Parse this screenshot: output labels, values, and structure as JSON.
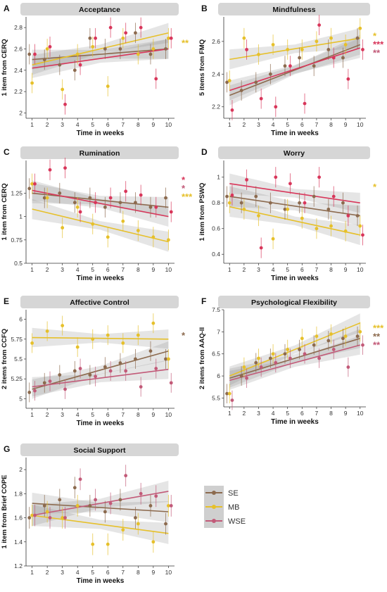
{
  "legend": {
    "entries": [
      {
        "name": "SE",
        "color": "#8C6A4E"
      },
      {
        "name": "MB",
        "color": "#E6C02A"
      },
      {
        "name": "WSE",
        "color": "#C25A78"
      }
    ]
  },
  "chart_data": [
    {
      "type": "scatter",
      "panel_letter": "A",
      "title": "Acceptance",
      "xlabel": "Time in weeks",
      "ylabel": "1 item from CERQ",
      "x": [
        1,
        2,
        3,
        4,
        5,
        6,
        7,
        8,
        9,
        10
      ],
      "xlim": [
        0.6,
        10.4
      ],
      "ylim": [
        1.95,
        2.9
      ],
      "yticks": [
        2.0,
        2.2,
        2.4,
        2.6,
        2.8
      ],
      "series": [
        {
          "values": [
            2.55,
            2.5,
            2.45,
            2.4,
            2.7,
            2.6,
            2.6,
            2.75,
            2.55,
            2.6
          ],
          "trend": [
            2.5,
            2.6
          ],
          "color": "#8C6A4E"
        },
        {
          "values": [
            2.28,
            2.6,
            2.22,
            2.55,
            2.62,
            2.25,
            2.7,
            2.55,
            2.6,
            2.7
          ],
          "trend": [
            2.45,
            2.75
          ],
          "color": "#E6C02A"
        },
        {
          "values": [
            2.55,
            2.62,
            2.08,
            2.45,
            2.7,
            2.8,
            2.75,
            2.8,
            2.32,
            2.7
          ],
          "trend": [
            2.42,
            2.6
          ],
          "color": "#D8365A"
        }
      ],
      "significance": [
        {
          "stars": "**",
          "color": "#E6C02A"
        }
      ]
    },
    {
      "type": "scatter",
      "panel_letter": "B",
      "title": "Mindfulness",
      "xlabel": "Time in weeks",
      "ylabel": "5 items from FMQ",
      "x": [
        1,
        2,
        3,
        4,
        5,
        6,
        7,
        8,
        9,
        10
      ],
      "xlim": [
        0.6,
        10.4
      ],
      "ylim": [
        2.13,
        2.75
      ],
      "yticks": [
        2.2,
        2.4,
        2.6
      ],
      "series": [
        {
          "values": [
            2.35,
            2.3,
            2.35,
            2.4,
            2.45,
            2.5,
            2.45,
            2.55,
            2.5,
            2.62
          ],
          "trend": [
            2.27,
            2.58
          ],
          "color": "#8C6A4E"
        },
        {
          "values": [
            2.36,
            2.62,
            2.52,
            2.58,
            2.55,
            2.55,
            2.6,
            2.62,
            2.58,
            2.68
          ],
          "trend": [
            2.49,
            2.62
          ],
          "color": "#E6C02A"
        },
        {
          "values": [
            2.18,
            2.55,
            2.25,
            2.2,
            2.45,
            2.22,
            2.7,
            2.5,
            2.37,
            2.55
          ],
          "trend": [
            2.3,
            2.56
          ],
          "color": "#D8365A"
        }
      ],
      "significance": [
        {
          "stars": "*",
          "color": "#E6C02A"
        },
        {
          "stars": "***",
          "color": "#D8365A"
        },
        {
          "stars": "**",
          "color": "#C25A78"
        }
      ]
    },
    {
      "type": "scatter",
      "panel_letter": "C",
      "title": "Rumination",
      "xlabel": "Time in weeks",
      "ylabel": "1 item from CERQ",
      "x": [
        1,
        2,
        3,
        4,
        5,
        6,
        7,
        8,
        9,
        10
      ],
      "xlim": [
        0.6,
        10.4
      ],
      "ylim": [
        0.5,
        1.6
      ],
      "yticks": [
        0.5,
        0.75,
        1.0,
        1.25
      ],
      "series": [
        {
          "values": [
            1.3,
            1.2,
            1.25,
            1.15,
            1.2,
            1.1,
            1.15,
            1.15,
            1.1,
            1.2
          ],
          "trend": [
            1.25,
            1.1
          ],
          "color": "#8C6A4E"
        },
        {
          "values": [
            1.35,
            1.2,
            0.88,
            1.1,
            0.92,
            0.78,
            0.95,
            0.85,
            0.78,
            0.75
          ],
          "trend": [
            1.08,
            0.73
          ],
          "color": "#E6C02A"
        },
        {
          "values": [
            1.35,
            1.5,
            1.52,
            1.05,
            1.15,
            1.2,
            1.27,
            1.23,
            1.1,
            1.05
          ],
          "trend": [
            1.28,
            1.0
          ],
          "color": "#D8365A"
        }
      ],
      "significance": [
        {
          "stars": "*",
          "color": "#D8365A"
        },
        {
          "stars": "*",
          "color": "#C25A78"
        },
        {
          "stars": "***",
          "color": "#E6C02A"
        }
      ]
    },
    {
      "type": "scatter",
      "panel_letter": "D",
      "title": "Worry",
      "xlabel": "Time in weeks",
      "ylabel": "1 item from PSWQ",
      "x": [
        1,
        2,
        3,
        4,
        5,
        6,
        7,
        8,
        9,
        10
      ],
      "xlim": [
        0.6,
        10.4
      ],
      "ylim": [
        0.33,
        1.13
      ],
      "yticks": [
        0.4,
        0.6,
        0.8,
        1.0
      ],
      "series": [
        {
          "values": [
            0.85,
            0.8,
            0.85,
            0.8,
            0.75,
            0.8,
            0.85,
            0.75,
            0.8,
            0.7
          ],
          "trend": [
            0.85,
            0.7
          ],
          "color": "#8C6A4E"
        },
        {
          "values": [
            0.8,
            0.75,
            0.7,
            0.52,
            0.75,
            0.68,
            0.6,
            0.62,
            0.58,
            0.62
          ],
          "trend": [
            0.77,
            0.55
          ],
          "color": "#E6C02A"
        },
        {
          "values": [
            0.86,
            0.98,
            0.45,
            1.0,
            0.95,
            0.8,
            1.0,
            0.85,
            0.7,
            0.55
          ],
          "trend": [
            0.95,
            0.8
          ],
          "color": "#D8365A"
        }
      ],
      "significance": [
        {
          "stars": "*",
          "color": "#E6C02A"
        }
      ]
    },
    {
      "type": "scatter",
      "panel_letter": "E",
      "title": "Affective Control",
      "xlabel": "Time in weeks",
      "ylabel": "2 items from CCFQ",
      "x": [
        1,
        2,
        3,
        4,
        5,
        6,
        7,
        8,
        9,
        10
      ],
      "xlim": [
        0.6,
        10.4
      ],
      "ylim": [
        4.88,
        6.12
      ],
      "yticks": [
        5.0,
        5.25,
        5.5,
        5.75,
        6.0
      ],
      "series": [
        {
          "values": [
            5.08,
            5.2,
            5.3,
            5.35,
            5.3,
            5.4,
            5.45,
            5.5,
            5.6,
            5.5
          ],
          "trend": [
            5.12,
            5.6
          ],
          "color": "#8C6A4E"
        },
        {
          "values": [
            5.7,
            5.85,
            5.92,
            5.65,
            5.75,
            5.8,
            5.7,
            5.8,
            5.95,
            5.5
          ],
          "trend": [
            5.77,
            5.75
          ],
          "color": "#E6C02A"
        },
        {
          "values": [
            5.1,
            5.22,
            5.12,
            5.38,
            5.28,
            5.35,
            5.35,
            5.15,
            5.38,
            5.2
          ],
          "trend": [
            5.15,
            5.37
          ],
          "color": "#C25A78"
        }
      ],
      "significance": [
        {
          "stars": "*",
          "color": "#8C6A4E"
        }
      ]
    },
    {
      "type": "scatter",
      "panel_letter": "F",
      "title": "Psychological Flexibility",
      "xlabel": "Time in weeks",
      "ylabel": "2 items from AAQ-II",
      "x": [
        1,
        2,
        3,
        4,
        5,
        6,
        7,
        8,
        9,
        10
      ],
      "xlim": [
        0.6,
        10.4
      ],
      "ylim": [
        5.3,
        7.5
      ],
      "yticks": [
        5.5,
        6.0,
        6.5,
        7.0,
        7.5
      ],
      "series": [
        {
          "values": [
            5.6,
            6.0,
            6.3,
            6.4,
            6.5,
            6.6,
            6.7,
            6.8,
            6.85,
            6.9
          ],
          "trend": [
            5.95,
            6.85
          ],
          "color": "#8C6A4E"
        },
        {
          "values": [
            5.6,
            6.2,
            6.4,
            6.5,
            6.6,
            6.85,
            6.9,
            6.95,
            6.9,
            7.0
          ],
          "trend": [
            6.0,
            7.2
          ],
          "color": "#E6C02A"
        },
        {
          "values": [
            5.45,
            5.95,
            6.2,
            6.3,
            6.4,
            6.5,
            6.4,
            6.6,
            6.2,
            6.7
          ],
          "trend": [
            5.9,
            6.7
          ],
          "color": "#C25A78"
        }
      ],
      "significance": [
        {
          "stars": "***",
          "color": "#E6C02A"
        },
        {
          "stars": "**",
          "color": "#8C6A4E"
        },
        {
          "stars": "**",
          "color": "#C25A78"
        }
      ]
    },
    {
      "type": "scatter",
      "panel_letter": "G",
      "title": "Social Support",
      "xlabel": "Time in weeks",
      "ylabel": "1 item from Brief COPE",
      "x": [
        1,
        2,
        3,
        4,
        5,
        6,
        7,
        8,
        9,
        10
      ],
      "xlim": [
        0.6,
        10.4
      ],
      "ylim": [
        1.2,
        2.1
      ],
      "yticks": [
        1.2,
        1.4,
        1.6,
        1.8,
        2.0
      ],
      "series": [
        {
          "values": [
            1.6,
            1.7,
            1.75,
            1.85,
            1.7,
            1.65,
            1.75,
            1.6,
            1.7,
            1.55
          ],
          "trend": [
            1.72,
            1.65
          ],
          "color": "#8C6A4E"
        },
        {
          "values": [
            1.62,
            1.65,
            1.6,
            1.7,
            1.38,
            1.38,
            1.5,
            1.55,
            1.4,
            1.7
          ],
          "trend": [
            1.62,
            1.47
          ],
          "color": "#E6C02A"
        },
        {
          "values": [
            1.62,
            1.6,
            1.6,
            1.92,
            1.75,
            1.72,
            1.95,
            1.8,
            1.78,
            1.7
          ],
          "trend": [
            1.62,
            1.82
          ],
          "color": "#C25A78"
        }
      ],
      "significance": []
    }
  ]
}
